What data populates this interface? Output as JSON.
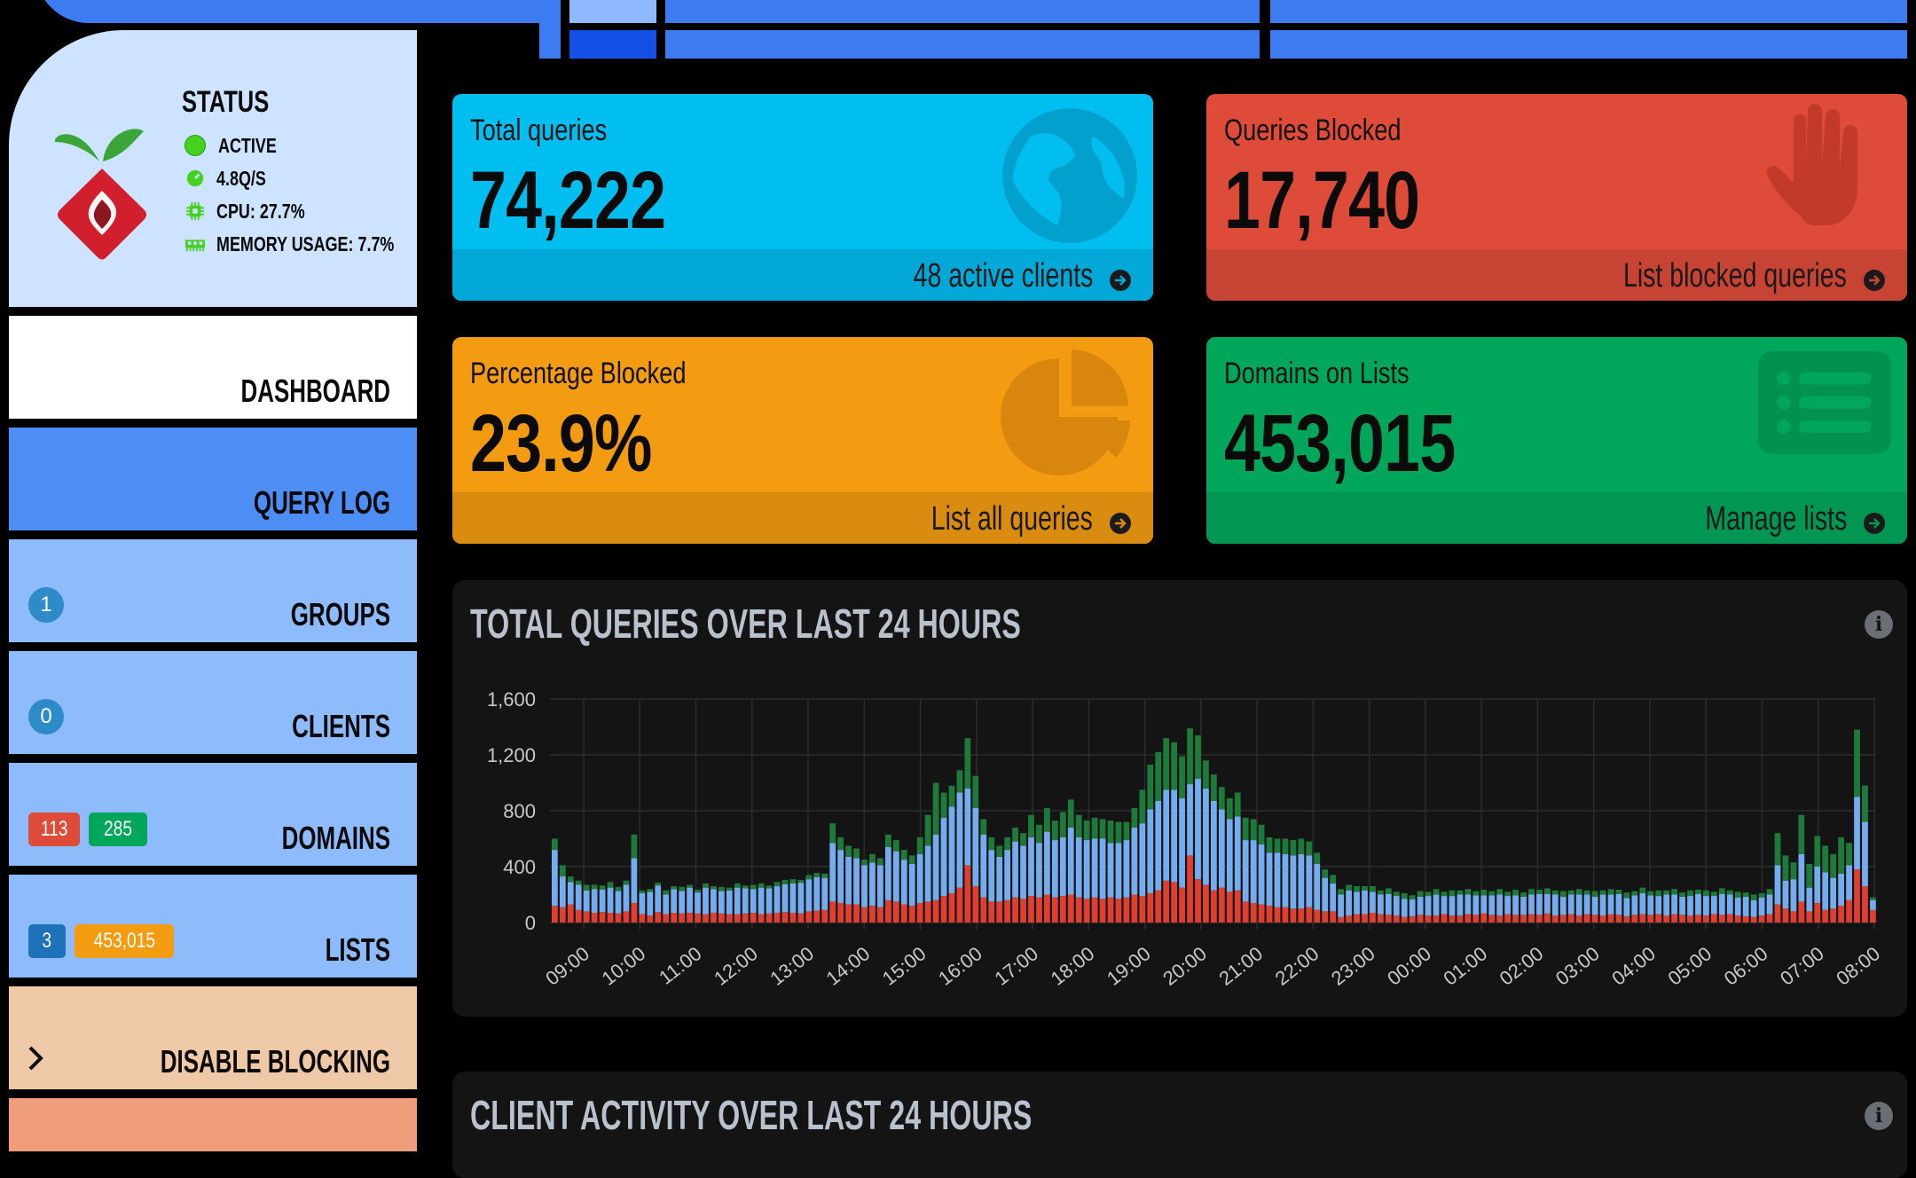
{
  "status": {
    "title": "STATUS",
    "active": "ACTIVE",
    "rate": "4.8Q/S",
    "cpu": "CPU: 27.7%",
    "memory": "MEMORY USAGE: 7.7%"
  },
  "nav": {
    "dashboard": "DASHBOARD",
    "query_log": "QUERY LOG",
    "groups": "GROUPS",
    "groups_badge": "1",
    "clients": "CLIENTS",
    "clients_badge": "0",
    "domains": "DOMAINS",
    "domains_badge_red": "113",
    "domains_badge_green": "285",
    "lists": "LISTS",
    "lists_badge_blue": "3",
    "lists_badge_orange": "453,015",
    "disable": "DISABLE BLOCKING",
    "disable_icon": "chevron-right-icon"
  },
  "cards": {
    "total": {
      "label": "Total queries",
      "value": "74,222",
      "link": "48 active clients",
      "icon": "globe-icon",
      "color": "#00bff0"
    },
    "blocked": {
      "label": "Queries Blocked",
      "value": "17,740",
      "link": "List blocked queries",
      "icon": "hand-icon",
      "color": "#de4b39"
    },
    "percent": {
      "label": "Percentage Blocked",
      "value": "23.9%",
      "link": "List all queries",
      "icon": "pie-chart-icon",
      "color": "#f39c12"
    },
    "domains": {
      "label": "Domains on Lists",
      "value": "453,015",
      "link": "Manage lists",
      "icon": "list-icon",
      "color": "#00a65a"
    }
  },
  "panels": {
    "queries_title": "TOTAL QUERIES OVER LAST 24 HOURS",
    "clients_title": "CLIENT ACTIVITY OVER LAST 24 HOURS",
    "info": "i"
  },
  "chart_data": {
    "type": "bar",
    "stacked": true,
    "grid": true,
    "ylim": [
      0,
      1600
    ],
    "yticks": [
      "0",
      "400",
      "800",
      "1,200",
      "1,600"
    ],
    "xticks": [
      "09:00",
      "10:00",
      "11:00",
      "12:00",
      "13:00",
      "14:00",
      "15:00",
      "16:00",
      "17:00",
      "18:00",
      "19:00",
      "20:00",
      "21:00",
      "22:00",
      "23:00",
      "00:00",
      "01:00",
      "02:00",
      "03:00",
      "04:00",
      "05:00",
      "06:00",
      "07:00",
      "08:00"
    ],
    "series": [
      {
        "color": "#de3f2f",
        "values": [
          120,
          110,
          130,
          90,
          80,
          70,
          75,
          70,
          65,
          80,
          140,
          60,
          50,
          75,
          60,
          70,
          65,
          70,
          65,
          60,
          70,
          65,
          60,
          60,
          65,
          70,
          60,
          65,
          70,
          75,
          70,
          65,
          80,
          85,
          90,
          150,
          140,
          130,
          130,
          110,
          120,
          110,
          160,
          150,
          130,
          120,
          140,
          150,
          160,
          190,
          210,
          250,
          410,
          260,
          180,
          150,
          150,
          160,
          180,
          170,
          190,
          180,
          200,
          180,
          190,
          200,
          180,
          170,
          180,
          170,
          180,
          170,
          180,
          200,
          190,
          210,
          230,
          300,
          290,
          250,
          480,
          310,
          270,
          230,
          250,
          220,
          230,
          150,
          140,
          130,
          120,
          110,
          110,
          100,
          100,
          110,
          90,
          80,
          80,
          40,
          50,
          60,
          60,
          70,
          60,
          55,
          50,
          40,
          45,
          55,
          50,
          50,
          60,
          50,
          50,
          60,
          55,
          65,
          55,
          50,
          60,
          55,
          55,
          60,
          55,
          65,
          50,
          55,
          60,
          50,
          60,
          55,
          50,
          60,
          55,
          45,
          55,
          60,
          55,
          60,
          50,
          60,
          55,
          50,
          55,
          50,
          60,
          55,
          60,
          50,
          45,
          40,
          50,
          60,
          130,
          100,
          80,
          150,
          80,
          140,
          90,
          100,
          120,
          160,
          380,
          260,
          90
        ]
      },
      {
        "color": "#74acee",
        "values": [
          400,
          220,
          160,
          180,
          150,
          170,
          160,
          180,
          160,
          190,
          320,
          150,
          170,
          190,
          140,
          170,
          160,
          180,
          150,
          190,
          170,
          160,
          170,
          190,
          180,
          170,
          190,
          180,
          190,
          200,
          210,
          220,
          230,
          240,
          230,
          420,
          380,
          340,
          330,
          300,
          310,
          300,
          380,
          360,
          320,
          300,
          350,
          400,
          470,
          560,
          620,
          680,
          550,
          560,
          450,
          370,
          320,
          360,
          400,
          380,
          420,
          390,
          450,
          410,
          420,
          480,
          430,
          420,
          420,
          430,
          390,
          400,
          410,
          480,
          520,
          600,
          640,
          650,
          660,
          640,
          510,
          720,
          690,
          640,
          560,
          520,
          530,
          440,
          450,
          430,
          380,
          390,
          380,
          380,
          390,
          370,
          330,
          240,
          200,
          160,
          180,
          160,
          170,
          150,
          140,
          150,
          140,
          130,
          120,
          130,
          140,
          150,
          130,
          140,
          150,
          140,
          140,
          130,
          140,
          150,
          130,
          140,
          130,
          140,
          150,
          140,
          150,
          130,
          140,
          150,
          140,
          130,
          150,
          140,
          150,
          130,
          140,
          150,
          140,
          130,
          150,
          140,
          130,
          140,
          150,
          140,
          130,
          150,
          140,
          130,
          140,
          120,
          130,
          140,
          280,
          200,
          230,
          340,
          170,
          260,
          270,
          220,
          230,
          250,
          520,
          460,
          70
        ]
      },
      {
        "color": "#1e7a3a",
        "values": [
          80,
          80,
          40,
          30,
          40,
          30,
          30,
          40,
          30,
          30,
          170,
          20,
          20,
          20,
          30,
          20,
          30,
          20,
          20,
          30,
          20,
          30,
          20,
          30,
          20,
          30,
          30,
          20,
          30,
          30,
          30,
          20,
          30,
          30,
          30,
          140,
          90,
          80,
          70,
          40,
          60,
          50,
          90,
          80,
          70,
          60,
          120,
          220,
          370,
          180,
          150,
          160,
          360,
          230,
          110,
          90,
          80,
          90,
          100,
          90,
          160,
          130,
          170,
          140,
          180,
          200,
          160,
          140,
          150,
          140,
          160,
          150,
          130,
          140,
          240,
          320,
          350,
          370,
          340,
          300,
          400,
          310,
          200,
          190,
          160,
          150,
          170,
          160,
          150,
          140,
          110,
          100,
          110,
          110,
          110,
          100,
          80,
          60,
          60,
          40,
          40,
          40,
          30,
          40,
          30,
          40,
          30,
          40,
          30,
          40,
          30,
          40,
          30,
          40,
          30,
          40,
          30,
          40,
          30,
          40,
          30,
          40,
          30,
          40,
          30,
          40,
          30,
          40,
          30,
          40,
          30,
          40,
          30,
          40,
          30,
          40,
          30,
          40,
          30,
          40,
          30,
          40,
          30,
          40,
          30,
          40,
          30,
          40,
          30,
          40,
          30,
          40,
          30,
          40,
          230,
          180,
          120,
          280,
          170,
          220,
          190,
          170,
          260,
          160,
          480,
          260,
          20
        ]
      }
    ]
  }
}
